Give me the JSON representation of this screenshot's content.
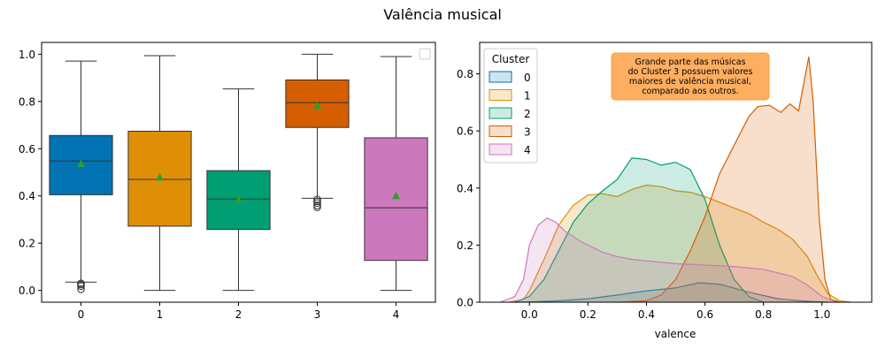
{
  "figure": {
    "title": "Valência musical"
  },
  "chart_data": [
    {
      "type": "box",
      "categories": [
        "0",
        "1",
        "2",
        "3",
        "4"
      ],
      "colors": [
        "#0173b2",
        "#de8f05",
        "#029e73",
        "#d55e00",
        "#cc78bc"
      ],
      "ylim": [
        -0.05,
        1.05
      ],
      "yticks": [
        0.0,
        0.2,
        0.4,
        0.6,
        0.8,
        1.0
      ],
      "tick_labels": [
        "0.0",
        "0.2",
        "0.4",
        "0.6",
        "0.8",
        "1.0"
      ],
      "legend": "empty, upper right",
      "boxes": [
        {
          "whisker_low": 0.035,
          "q1": 0.405,
          "median": 0.548,
          "q3": 0.656,
          "whisker_high": 0.971,
          "mean": 0.535,
          "outliers": [
            0.03,
            0.025,
            0.018,
            0.005
          ]
        },
        {
          "whisker_low": 0.0,
          "q1": 0.272,
          "median": 0.47,
          "q3": 0.674,
          "whisker_high": 0.994,
          "mean": 0.478,
          "outliers": []
        },
        {
          "whisker_low": 0.0,
          "q1": 0.258,
          "median": 0.387,
          "q3": 0.507,
          "whisker_high": 0.853,
          "mean": 0.382,
          "outliers": []
        },
        {
          "whisker_low": 0.39,
          "q1": 0.69,
          "median": 0.795,
          "q3": 0.891,
          "whisker_high": 1.0,
          "mean": 0.782,
          "outliers": [
            0.385,
            0.377,
            0.37,
            0.36,
            0.352
          ]
        },
        {
          "whisker_low": 0.0,
          "q1": 0.127,
          "median": 0.35,
          "q3": 0.646,
          "whisker_high": 0.99,
          "mean": 0.4,
          "outliers": []
        }
      ]
    },
    {
      "type": "area",
      "xlabel": "valence",
      "xlim": [
        -0.17,
        1.17
      ],
      "ylim": [
        0.0,
        0.91
      ],
      "xticks": [
        0.0,
        0.2,
        0.4,
        0.6,
        0.8,
        1.0
      ],
      "xtick_labels": [
        "0.0",
        "0.2",
        "0.4",
        "0.6",
        "0.8",
        "1.0"
      ],
      "yticks": [
        0.0,
        0.2,
        0.4,
        0.6,
        0.8
      ],
      "ytick_labels": [
        "0.0",
        "0.2",
        "0.4",
        "0.6",
        "0.8"
      ],
      "legend_title": "Cluster",
      "annotation": [
        "Grande parte das músicas",
        "do Cluster 3 possuem valores",
        "maiores de valência musical,",
        "comparado aos outros."
      ],
      "annotation_color": "#fdae61",
      "series": [
        {
          "name": "0",
          "color": "#0173b2",
          "points": [
            [
              -0.05,
              0
            ],
            [
              0.0,
              0.001
            ],
            [
              0.1,
              0.005
            ],
            [
              0.2,
              0.012
            ],
            [
              0.3,
              0.025
            ],
            [
              0.4,
              0.04
            ],
            [
              0.5,
              0.05
            ],
            [
              0.58,
              0.068
            ],
            [
              0.65,
              0.063
            ],
            [
              0.75,
              0.035
            ],
            [
              0.85,
              0.012
            ],
            [
              0.95,
              0.003
            ],
            [
              1.02,
              0
            ]
          ]
        },
        {
          "name": "1",
          "color": "#de8f05",
          "points": [
            [
              -0.07,
              0
            ],
            [
              -0.02,
              0.01
            ],
            [
              0.0,
              0.04
            ],
            [
              0.05,
              0.15
            ],
            [
              0.1,
              0.27
            ],
            [
              0.15,
              0.34
            ],
            [
              0.2,
              0.375
            ],
            [
              0.25,
              0.38
            ],
            [
              0.3,
              0.37
            ],
            [
              0.35,
              0.395
            ],
            [
              0.4,
              0.41
            ],
            [
              0.45,
              0.405
            ],
            [
              0.5,
              0.39
            ],
            [
              0.55,
              0.385
            ],
            [
              0.6,
              0.37
            ],
            [
              0.65,
              0.35
            ],
            [
              0.7,
              0.33
            ],
            [
              0.75,
              0.31
            ],
            [
              0.8,
              0.28
            ],
            [
              0.85,
              0.255
            ],
            [
              0.9,
              0.22
            ],
            [
              0.95,
              0.16
            ],
            [
              0.98,
              0.1
            ],
            [
              1.02,
              0.03
            ],
            [
              1.06,
              0.005
            ],
            [
              1.1,
              0
            ]
          ]
        },
        {
          "name": "2",
          "color": "#029e73",
          "points": [
            [
              -0.05,
              0
            ],
            [
              0.0,
              0.02
            ],
            [
              0.05,
              0.08
            ],
            [
              0.1,
              0.18
            ],
            [
              0.15,
              0.28
            ],
            [
              0.2,
              0.345
            ],
            [
              0.25,
              0.39
            ],
            [
              0.3,
              0.43
            ],
            [
              0.35,
              0.505
            ],
            [
              0.4,
              0.5
            ],
            [
              0.45,
              0.48
            ],
            [
              0.5,
              0.49
            ],
            [
              0.55,
              0.465
            ],
            [
              0.6,
              0.36
            ],
            [
              0.65,
              0.2
            ],
            [
              0.7,
              0.08
            ],
            [
              0.75,
              0.02
            ],
            [
              0.8,
              0
            ]
          ]
        },
        {
          "name": "3",
          "color": "#d55e00",
          "points": [
            [
              0.3,
              0
            ],
            [
              0.4,
              0.005
            ],
            [
              0.45,
              0.025
            ],
            [
              0.5,
              0.08
            ],
            [
              0.55,
              0.18
            ],
            [
              0.6,
              0.3
            ],
            [
              0.65,
              0.45
            ],
            [
              0.7,
              0.55
            ],
            [
              0.75,
              0.65
            ],
            [
              0.78,
              0.685
            ],
            [
              0.82,
              0.69
            ],
            [
              0.86,
              0.665
            ],
            [
              0.89,
              0.695
            ],
            [
              0.92,
              0.67
            ],
            [
              0.94,
              0.78
            ],
            [
              0.955,
              0.86
            ],
            [
              0.97,
              0.7
            ],
            [
              0.99,
              0.3
            ],
            [
              1.01,
              0.08
            ],
            [
              1.03,
              0.01
            ],
            [
              1.06,
              0
            ]
          ]
        },
        {
          "name": "4",
          "color": "#cc78bc",
          "points": [
            [
              -0.1,
              0
            ],
            [
              -0.05,
              0.02
            ],
            [
              -0.02,
              0.08
            ],
            [
              0.0,
              0.2
            ],
            [
              0.03,
              0.27
            ],
            [
              0.06,
              0.295
            ],
            [
              0.09,
              0.28
            ],
            [
              0.12,
              0.25
            ],
            [
              0.18,
              0.21
            ],
            [
              0.25,
              0.175
            ],
            [
              0.3,
              0.16
            ],
            [
              0.35,
              0.15
            ],
            [
              0.4,
              0.145
            ],
            [
              0.5,
              0.135
            ],
            [
              0.6,
              0.13
            ],
            [
              0.7,
              0.125
            ],
            [
              0.8,
              0.115
            ],
            [
              0.9,
              0.09
            ],
            [
              0.95,
              0.06
            ],
            [
              1.0,
              0.02
            ],
            [
              1.05,
              0
            ]
          ]
        }
      ]
    }
  ]
}
